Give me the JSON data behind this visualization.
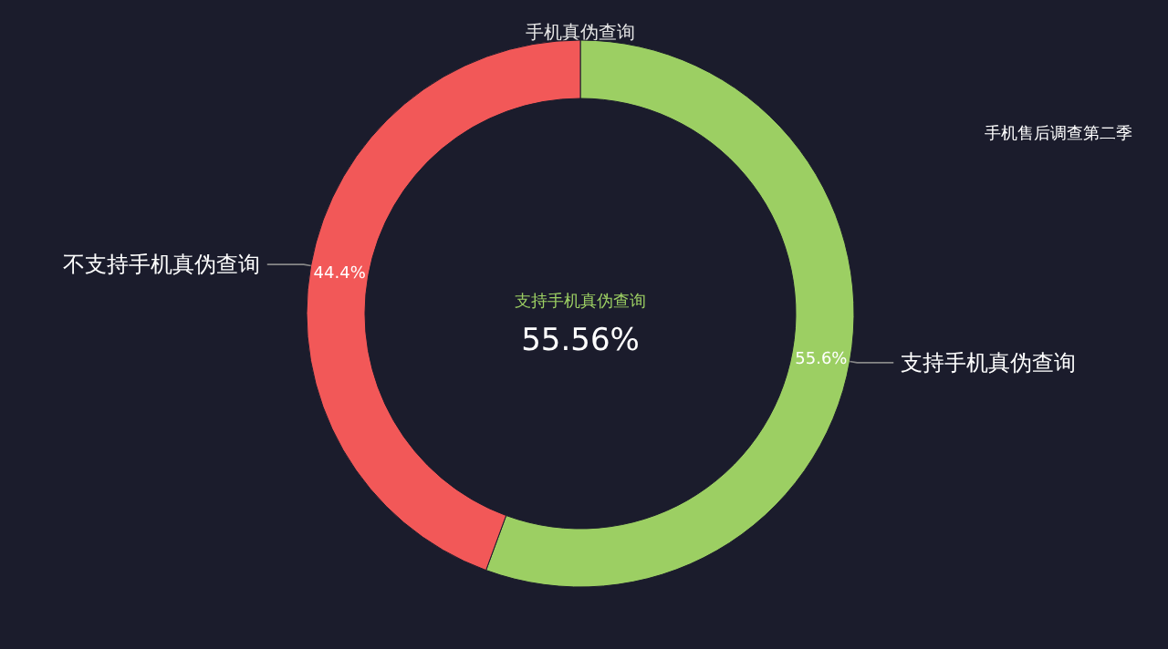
{
  "chart_data": {
    "type": "donut",
    "title": "手机真伪查询",
    "categories": [
      "支持手机真伪查询",
      "不支持手机真伪查询"
    ],
    "values": [
      55.6,
      44.4
    ],
    "colors": [
      "#9ccf63",
      "#f25858"
    ],
    "value_labels": [
      "55.6%",
      "44.4%"
    ],
    "annotations": [
      "支持手机真伪查询",
      "55.56%",
      "手机售后调查第二季"
    ]
  }
}
